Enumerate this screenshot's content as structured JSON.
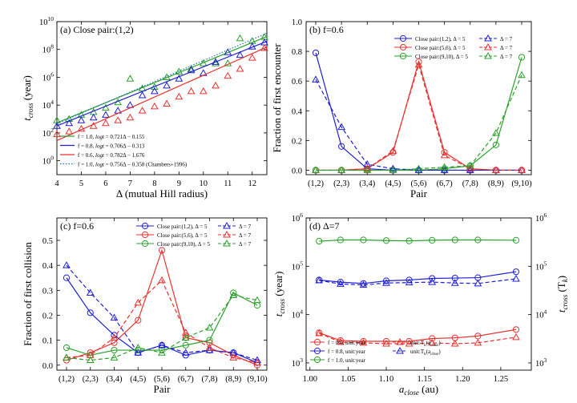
{
  "chart_data": [
    {
      "panel": "a",
      "type": "scatter",
      "title": "(a) Close pair:(1,2)",
      "xlabel": "Δ (mutual Hill radius)",
      "ylabel": "t_cross (year)",
      "ylabel_main": "t",
      "ylabel_sub": "cross",
      "ylabel_unit": " (year)",
      "yscale": "log",
      "xlim": [
        4,
        12.6
      ],
      "ylim_log10": [
        -1,
        10
      ],
      "xticks": [
        4,
        5,
        6,
        7,
        8,
        9,
        10,
        11,
        12
      ],
      "yticks": [
        {
          "exp": 0,
          "label": "10^0"
        },
        {
          "exp": 2,
          "label": "10^2"
        },
        {
          "exp": 4,
          "label": "10^4"
        },
        {
          "exp": 6,
          "label": "10^6"
        },
        {
          "exp": 8,
          "label": "10^8"
        },
        {
          "exp": 10,
          "label": "10^10"
        }
      ],
      "series": [
        {
          "name": "f = 1.0, logt = 0.721Δ − 0.155",
          "legend_pre": "f = 1.0, ",
          "legend_italic": "logt",
          "legend_post": " = 0.721Δ − 0.155",
          "color": "#2ca02c",
          "style": "solid",
          "fit": [
            0.721,
            -0.155
          ],
          "points": [
            [
              4.0,
              2.9
            ],
            [
              4.5,
              3.0
            ],
            [
              5.0,
              3.3
            ],
            [
              5.5,
              3.5
            ],
            [
              6.0,
              3.8
            ],
            [
              6.5,
              4.2
            ],
            [
              7.0,
              5.9
            ],
            [
              7.5,
              5.2
            ],
            [
              8.0,
              5.3
            ],
            [
              8.5,
              6.0
            ],
            [
              9.0,
              6.4
            ],
            [
              9.5,
              6.6
            ],
            [
              10.0,
              7.0
            ],
            [
              10.5,
              7.0
            ],
            [
              11.0,
              7.0
            ],
            [
              11.5,
              8.8
            ],
            [
              12.0,
              8.6
            ],
            [
              12.5,
              8.9
            ]
          ]
        },
        {
          "name": "f = 0.8, logt = 0.706Δ − 0.313",
          "legend_pre": "f = 0.8, ",
          "legend_italic": "logt",
          "legend_post": " = 0.706Δ − 0.313",
          "color": "#1f1fd6",
          "style": "solid",
          "fit": [
            0.706,
            -0.313
          ],
          "points": [
            [
              4.0,
              2.5
            ],
            [
              4.5,
              2.7
            ],
            [
              5.0,
              2.9
            ],
            [
              5.5,
              3.1
            ],
            [
              6.0,
              3.3
            ],
            [
              6.5,
              3.6
            ],
            [
              7.0,
              4.0
            ],
            [
              7.5,
              4.7
            ],
            [
              8.0,
              5.0
            ],
            [
              8.5,
              5.4
            ],
            [
              9.0,
              5.9
            ],
            [
              9.5,
              6.5
            ],
            [
              10.0,
              6.3
            ],
            [
              10.5,
              7.1
            ],
            [
              11.0,
              7.8
            ],
            [
              11.5,
              7.6
            ],
            [
              12.0,
              8.2
            ],
            [
              12.5,
              8.5
            ]
          ]
        },
        {
          "name": "f = 0.6, logt = 0.782Δ − 1.676",
          "legend_pre": "f = 0.6, ",
          "legend_italic": "logt",
          "legend_post": " = 0.782Δ − 1.676",
          "color": "#e8322f",
          "style": "solid",
          "fit": [
            0.782,
            -1.676
          ],
          "points": [
            [
              4.0,
              1.9
            ],
            [
              4.5,
              2.1
            ],
            [
              5.0,
              2.3
            ],
            [
              5.5,
              2.5
            ],
            [
              6.0,
              2.7
            ],
            [
              6.5,
              2.9
            ],
            [
              7.0,
              3.1
            ],
            [
              7.5,
              3.6
            ],
            [
              8.0,
              3.9
            ],
            [
              8.5,
              4.1
            ],
            [
              9.0,
              4.6
            ],
            [
              9.5,
              5.0
            ],
            [
              10.0,
              5.0
            ],
            [
              10.5,
              5.4
            ],
            [
              11.0,
              6.1
            ],
            [
              11.5,
              6.6
            ],
            [
              12.0,
              7.4
            ],
            [
              12.5,
              8.1
            ]
          ]
        },
        {
          "name": "f = 1.0, logt = 0.756Δ − 0.358 (Chambers+1996)",
          "legend_pre": "f = 1.0, ",
          "legend_italic": "logt",
          "legend_post": " = 0.756Δ − 0.358 (Chambers+1996)",
          "color": "#1f6fb4",
          "style": "dotted",
          "fit": [
            0.756,
            -0.358
          ],
          "points": []
        }
      ]
    },
    {
      "panel": "b",
      "type": "line",
      "title": "(b) f=0.6",
      "xlabel": "Pair",
      "ylabel": "Fraction of first encounter",
      "categories": [
        "(1,2)",
        "(2,3)",
        "(3,4)",
        "(4,5)",
        "(5,6)",
        "(6,7)",
        "(7,8)",
        "(8,9)",
        "(9,10)"
      ],
      "ylim": [
        -0.03,
        1.0
      ],
      "yticks": [
        0.0,
        0.2,
        0.4,
        0.6,
        0.8,
        1.0
      ],
      "series": [
        {
          "name": "Close pair:(1,2), Δ = 5",
          "color": "#1f1fd6",
          "style": "solid",
          "values": [
            0.79,
            0.16,
            0.01,
            0.0,
            0.0,
            0.0,
            0.0,
            0.0,
            0.0
          ]
        },
        {
          "name": "Close pair:(5,6), Δ = 5",
          "color": "#e8322f",
          "style": "solid",
          "values": [
            0.0,
            0.0,
            0.01,
            0.12,
            0.73,
            0.12,
            0.01,
            0.0,
            0.0
          ]
        },
        {
          "name": "Close pair:(9,10), Δ = 5",
          "color": "#2ca02c",
          "style": "solid",
          "values": [
            0.0,
            0.0,
            0.0,
            0.0,
            0.0,
            0.01,
            0.03,
            0.17,
            0.76
          ]
        },
        {
          "name": "Δ = 7",
          "color": "#1f1fd6",
          "style": "dashed",
          "values": [
            0.61,
            0.29,
            0.04,
            0.01,
            0.0,
            0.0,
            0.0,
            0.0,
            0.0
          ]
        },
        {
          "name": "Δ = 7",
          "color": "#e8322f",
          "style": "dashed",
          "values": [
            0.0,
            0.0,
            0.01,
            0.13,
            0.71,
            0.1,
            0.01,
            0.0,
            0.0
          ]
        },
        {
          "name": "Δ = 7",
          "color": "#2ca02c",
          "style": "dashed",
          "values": [
            0.0,
            0.0,
            0.0,
            0.0,
            0.01,
            0.02,
            0.03,
            0.25,
            0.64
          ]
        }
      ]
    },
    {
      "panel": "c",
      "type": "line",
      "title": "(c) f=0.6",
      "xlabel": "Pair",
      "ylabel": "Fraction of first collision",
      "categories": [
        "(1,2)",
        "(2,3)",
        "(3,4)",
        "(4,5)",
        "(5,6)",
        "(6,7)",
        "(7,8)",
        "(8,9)",
        "(9,10)"
      ],
      "ylim": [
        -0.02,
        0.59
      ],
      "yticks": [
        0.0,
        0.1,
        0.2,
        0.3,
        0.4,
        0.5
      ],
      "series": [
        {
          "name": "Close pair:(1,2), Δ = 5",
          "color": "#1f1fd6",
          "style": "solid",
          "values": [
            0.35,
            0.21,
            0.12,
            0.05,
            0.08,
            0.04,
            0.06,
            0.05,
            0.01
          ]
        },
        {
          "name": "Close pair:(5,6), Δ = 5",
          "color": "#e8322f",
          "style": "solid",
          "values": [
            0.02,
            0.05,
            0.09,
            0.18,
            0.46,
            0.11,
            0.09,
            0.04,
            0.0
          ]
        },
        {
          "name": "Close pair:(9,10), Δ = 5",
          "color": "#2ca02c",
          "style": "solid",
          "values": [
            0.07,
            0.04,
            0.06,
            0.06,
            0.06,
            0.08,
            0.1,
            0.29,
            0.24
          ]
        },
        {
          "name": "Δ = 7",
          "color": "#1f1fd6",
          "style": "dashed",
          "values": [
            0.4,
            0.29,
            0.19,
            0.05,
            0.08,
            0.05,
            0.06,
            0.05,
            0.02
          ]
        },
        {
          "name": "Δ = 7",
          "color": "#e8322f",
          "style": "dashed",
          "values": [
            0.03,
            0.04,
            0.11,
            0.25,
            0.34,
            0.13,
            0.07,
            0.03,
            0.01
          ]
        },
        {
          "name": "Δ = 7",
          "color": "#2ca02c",
          "style": "dashed",
          "values": [
            0.03,
            0.02,
            0.03,
            0.07,
            0.05,
            0.11,
            0.15,
            0.28,
            0.26
          ]
        }
      ]
    },
    {
      "panel": "d",
      "type": "line",
      "title": "(d) Δ=7",
      "xlabel_main": "a",
      "xlabel_sub": "close",
      "xlabel_unit": " (au)",
      "ylabel_main": "t",
      "ylabel_sub": "cross",
      "ylabel_unit": " (year)",
      "ylabel2_main": "t",
      "ylabel2_sub": "cross",
      "ylabel2_unit": " (T",
      "ylabel2_unit_sub": "k",
      "ylabel2_unit_end": ")",
      "yscale": "log",
      "xlim": [
        0.995,
        1.29
      ],
      "ylim_log10": [
        2.85,
        6.0
      ],
      "xticks": [
        1.0,
        1.05,
        1.1,
        1.15,
        1.2,
        1.25
      ],
      "xtick_labels": [
        "1.00",
        "1.05",
        "1.10",
        "1.15",
        "1.20",
        "1.25"
      ],
      "yticks": [
        {
          "exp": 3,
          "label": "10^3"
        },
        {
          "exp": 4,
          "label": "10^4"
        },
        {
          "exp": 5,
          "label": "10^5"
        },
        {
          "exp": 6,
          "label": "10^6"
        }
      ],
      "x": [
        1.012,
        1.04,
        1.07,
        1.1,
        1.13,
        1.16,
        1.19,
        1.22,
        1.27
      ],
      "series": [
        {
          "name": "f = 0.6, unit:year",
          "color": "#e8322f",
          "style": "solid",
          "values": [
            4200,
            2900,
            2800,
            2800,
            2800,
            3200,
            3300,
            3600,
            4900
          ]
        },
        {
          "name": "f = 0.8, unit:year",
          "color": "#1f1fd6",
          "style": "solid",
          "values": [
            52000,
            47000,
            44000,
            50000,
            52000,
            56000,
            57000,
            58000,
            77000
          ]
        },
        {
          "name": "f = 1.0, unit:year",
          "color": "#2ca02c",
          "style": "solid",
          "values": [
            330000,
            350000,
            350000,
            340000,
            335000,
            345000,
            350000,
            350000,
            345000
          ]
        },
        {
          "name": "unit:T_k(a_close)",
          "legend_pre": "unit:T",
          "legend_sub1": "k",
          "legend_mid": "(a",
          "legend_sub2": "close",
          "legend_end": ")",
          "color": "#e8322f",
          "style": "dashed",
          "values": [
            4100,
            2700,
            2600,
            2500,
            2500,
            2600,
            2500,
            2600,
            3400
          ]
        },
        {
          "name": "unit:T_k(a_close)",
          "legend_pre": "unit:T",
          "legend_sub1": "k",
          "legend_mid": "(a",
          "legend_sub2": "close",
          "legend_end": ")",
          "color": "#1f1fd6",
          "style": "dashed",
          "values": [
            51000,
            43000,
            41000,
            45000,
            46000,
            47000,
            45000,
            44000,
            55000
          ]
        }
      ]
    }
  ]
}
